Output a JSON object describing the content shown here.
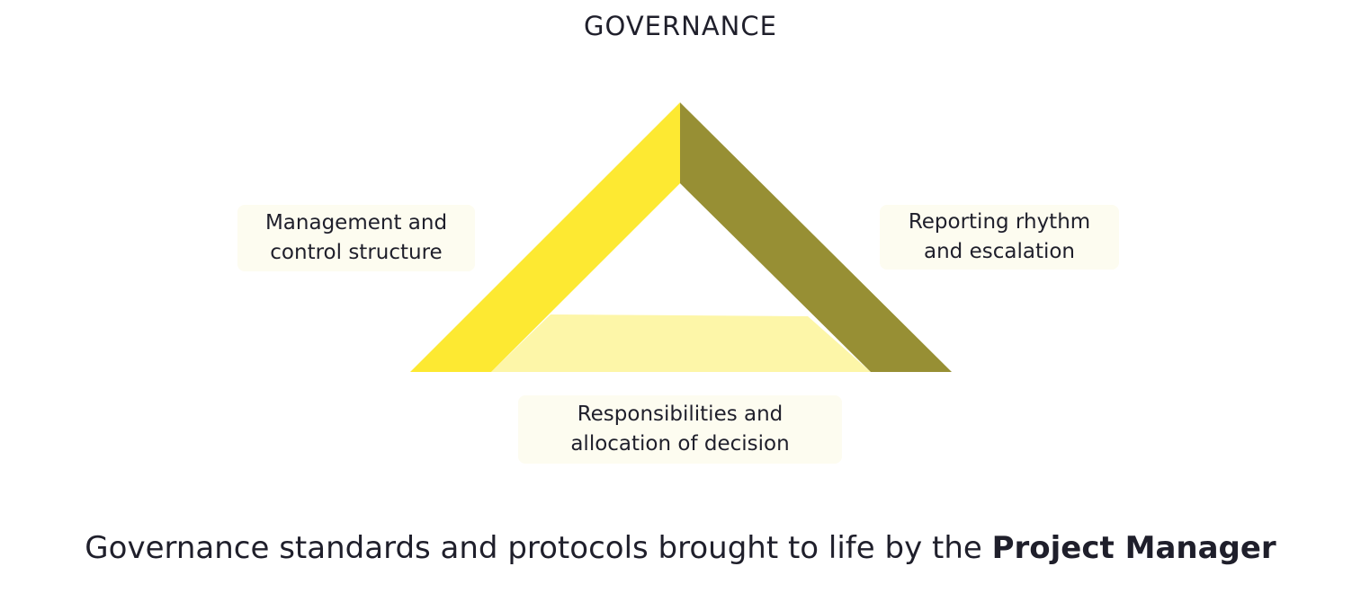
{
  "title": "GOVERNANCE",
  "colors": {
    "left_edge": "#fde932",
    "right_edge": "#978f34",
    "bottom_edge": "#fdf6a8",
    "label_bg": "#fdfcf0",
    "text": "#1f1f2b"
  },
  "labels": {
    "left": [
      "Management and",
      "control structure"
    ],
    "right": [
      "Reporting rhythm",
      "and escalation"
    ],
    "bottom": [
      "Responsibilities and",
      "allocation of decision"
    ]
  },
  "caption": {
    "prefix": "Governance standards and protocols brought to life by the ",
    "emphasis": "Project Manager"
  }
}
